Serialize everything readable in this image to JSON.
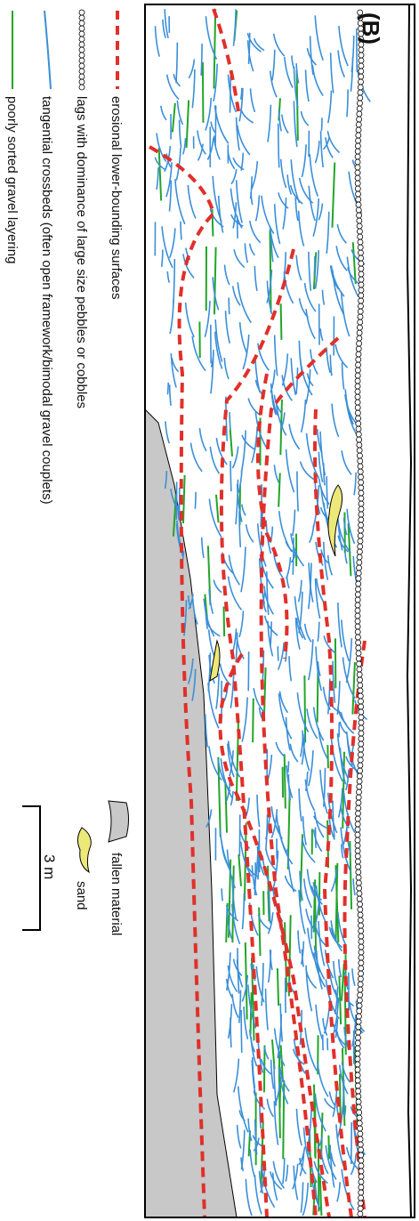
{
  "panel_label": "(B)",
  "legend": {
    "items": [
      "erosional lower-bounding surfaces",
      "lags with dominance of large size pebbles or cobbles",
      "tangential crossbeds (often open framework/bimodal gravel couplets)",
      "poorly sorted gravel layering"
    ],
    "fallen_material": "fallen material",
    "sand": "sand"
  },
  "scale_bar": "3 m"
}
